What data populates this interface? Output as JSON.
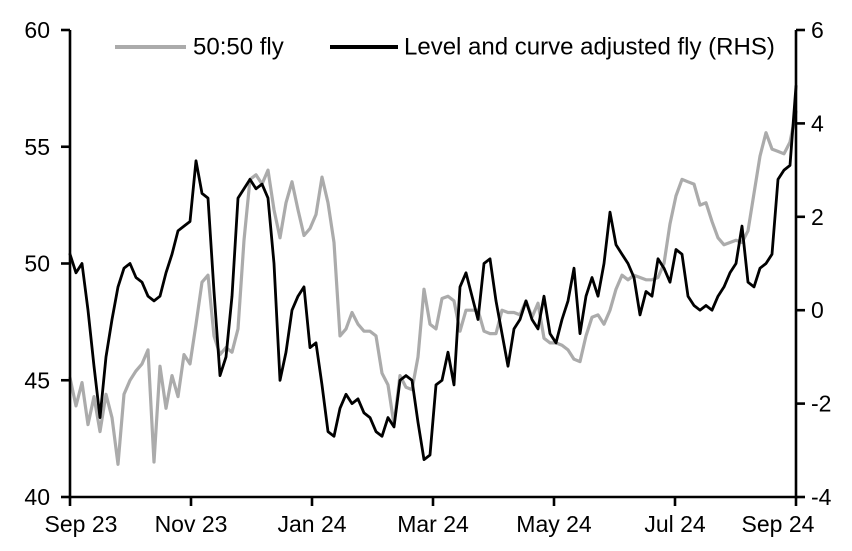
{
  "legend": {
    "items": [
      {
        "label": "50:50 fly",
        "color": "#ABABAB"
      },
      {
        "label": "Level and curve adjusted fly (RHS)",
        "color": "#000000"
      }
    ]
  },
  "chart_data": {
    "type": "line",
    "title": "",
    "xlabel": "",
    "ylabel_left": "",
    "ylabel_right": "",
    "grid": false,
    "legend_position": "top",
    "x_axis": {
      "tick_labels": [
        "Sep 23",
        "Nov 23",
        "Jan 24",
        "Mar 24",
        "May 24",
        "Jul 24",
        "Sep 24"
      ]
    },
    "left_axis": {
      "range": [
        40,
        60
      ],
      "ticks": [
        60,
        55,
        50,
        45,
        40
      ]
    },
    "right_axis": {
      "range": [
        -4,
        6
      ],
      "ticks": [
        6,
        4,
        2,
        0,
        -2,
        -4
      ]
    },
    "series": [
      {
        "name": "50:50 fly",
        "axis": "left",
        "color": "#ABABAB",
        "values": [
          45.1,
          43.9,
          44.9,
          43.1,
          44.3,
          42.8,
          44.4,
          43.4,
          41.4,
          44.4,
          45.0,
          45.4,
          45.7,
          46.3,
          41.5,
          45.6,
          43.8,
          45.2,
          44.3,
          46.1,
          45.7,
          47.4,
          49.2,
          49.5,
          46.9,
          46.1,
          46.4,
          46.2,
          47.2,
          51.0,
          53.6,
          53.8,
          53.4,
          54.0,
          52.3,
          51.1,
          52.6,
          53.5,
          52.3,
          51.2,
          51.5,
          52.1,
          53.7,
          52.6,
          50.9,
          46.9,
          47.2,
          47.9,
          47.4,
          47.1,
          47.1,
          46.9,
          45.3,
          44.8,
          43.1,
          45.2,
          44.7,
          44.6,
          46.0,
          48.9,
          47.4,
          47.2,
          48.5,
          48.6,
          48.4,
          47.1,
          48.0,
          48.0,
          48.0,
          47.1,
          47.0,
          47.0,
          48.0,
          47.9,
          47.9,
          47.8,
          48.4,
          47.7,
          48.3,
          46.8,
          46.6,
          46.6,
          46.5,
          46.3,
          45.9,
          45.8,
          46.9,
          47.7,
          47.8,
          47.4,
          48.0,
          48.9,
          49.5,
          49.3,
          49.5,
          49.4,
          49.3,
          49.3,
          49.4,
          50.0,
          51.7,
          52.9,
          53.6,
          53.5,
          53.4,
          52.5,
          52.6,
          51.8,
          51.1,
          50.8,
          50.9,
          51.0,
          50.9,
          51.4,
          53.0,
          54.6,
          55.6,
          54.9,
          54.8,
          54.7,
          55.2,
          56.5
        ]
      },
      {
        "name": "Level and curve adjusted fly (RHS)",
        "axis": "right",
        "color": "#000000",
        "values": [
          1.2,
          0.8,
          1.0,
          0.0,
          -1.2,
          -2.3,
          -1.0,
          -0.2,
          0.5,
          0.9,
          1.0,
          0.7,
          0.6,
          0.3,
          0.2,
          0.3,
          0.8,
          1.2,
          1.7,
          1.8,
          1.9,
          3.2,
          2.5,
          2.4,
          0.4,
          -1.4,
          -1.0,
          0.3,
          2.4,
          2.6,
          2.8,
          2.6,
          2.7,
          2.4,
          1.0,
          -1.5,
          -0.9,
          0.0,
          0.3,
          0.5,
          -0.8,
          -0.7,
          -1.6,
          -2.6,
          -2.7,
          -2.1,
          -1.8,
          -2.0,
          -1.9,
          -2.2,
          -2.3,
          -2.6,
          -2.7,
          -2.3,
          -2.5,
          -1.5,
          -1.4,
          -1.5,
          -2.4,
          -3.2,
          -3.1,
          -1.6,
          -1.5,
          -0.9,
          -1.6,
          0.5,
          0.8,
          0.3,
          -0.2,
          1.0,
          1.1,
          0.2,
          -0.5,
          -1.2,
          -0.4,
          -0.2,
          0.2,
          -0.2,
          -0.4,
          0.3,
          -0.5,
          -0.7,
          -0.2,
          0.2,
          0.9,
          -0.5,
          0.3,
          0.7,
          0.3,
          1.0,
          2.1,
          1.4,
          1.2,
          1.0,
          0.7,
          -0.1,
          0.4,
          0.3,
          1.1,
          0.9,
          0.6,
          1.3,
          1.2,
          0.3,
          0.1,
          0.0,
          0.1,
          0.0,
          0.3,
          0.5,
          0.8,
          1.0,
          1.8,
          0.6,
          0.5,
          0.9,
          1.0,
          1.2,
          2.8,
          3.0,
          3.1,
          4.8
        ]
      }
    ]
  }
}
